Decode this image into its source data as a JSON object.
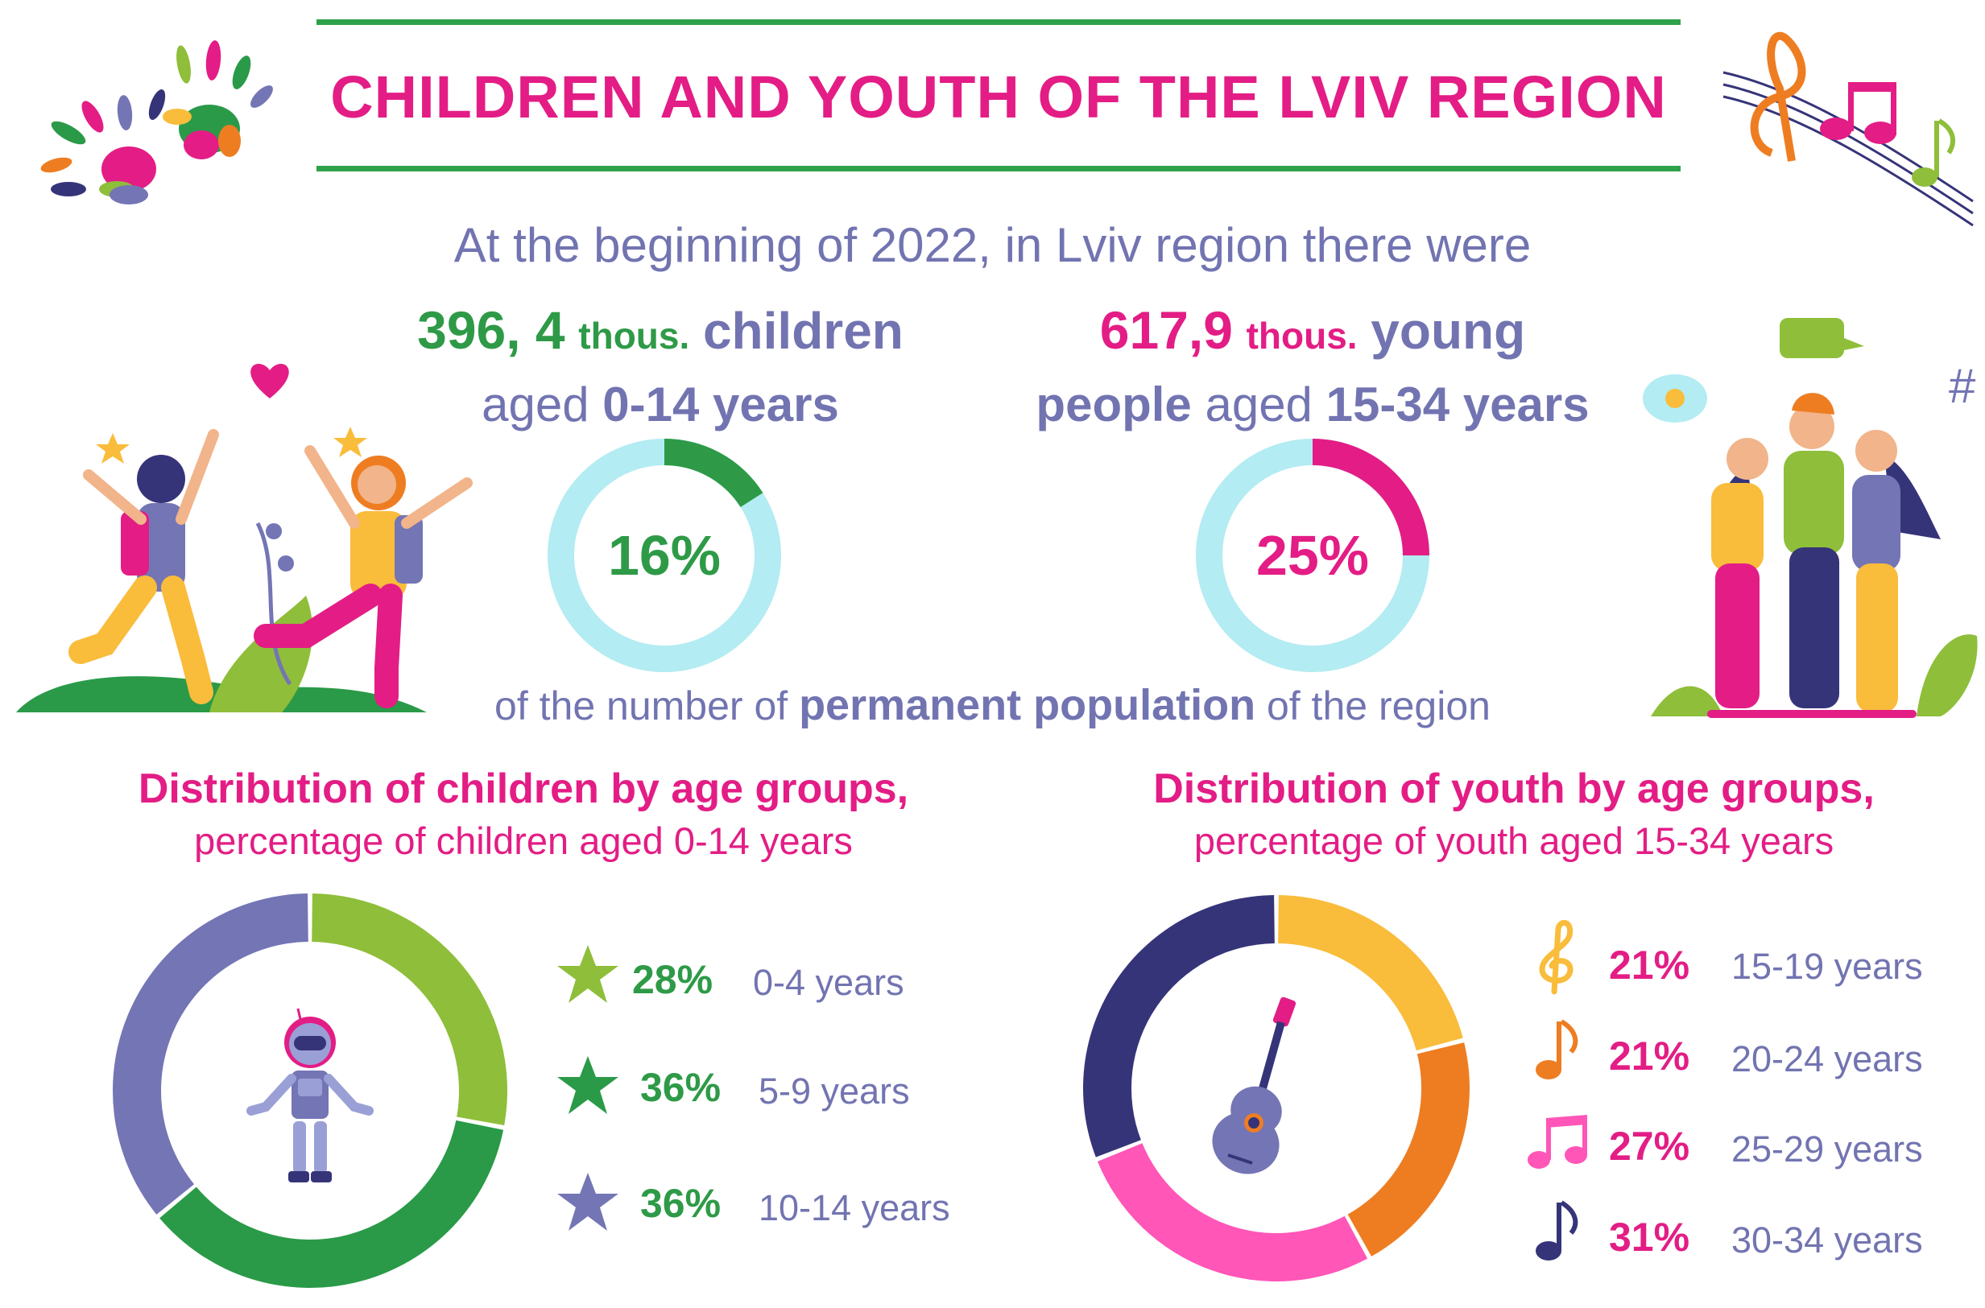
{
  "header": {
    "title": "CHILDREN AND YOUTH OF THE LVIV REGION"
  },
  "intro": {
    "text": "At the beginning of 2022, in Lviv region there were"
  },
  "children_stat": {
    "value": "396, 4",
    "unit": "thous.",
    "noun": "children",
    "aged_prefix": "aged",
    "age_range": "0-14 years",
    "share_label": "16%",
    "share": 16
  },
  "youth_stat": {
    "value": "617,9",
    "unit": "thous.",
    "noun_line1": "young",
    "noun_line2": "people",
    "aged_prefix": "aged",
    "age_range": "15-34 years",
    "share_label": "25%",
    "share": 25
  },
  "population_note": {
    "prefix": "of the number of",
    "bold": "permanent population",
    "suffix": "of the region"
  },
  "children_section": {
    "title": "Distribution of children by age groups,",
    "subtitle": "percentage of children aged 0-14 years"
  },
  "youth_section": {
    "title": "Distribution of youth by age groups,",
    "subtitle": "percentage of  youth aged 15-34 years"
  },
  "colors": {
    "pink": "#e31d85",
    "green": "#2e9a47",
    "purple": "#7274b1",
    "light_blue": "#b3ecf2",
    "lime": "#8fbe3a",
    "dark_green": "#2a9a48",
    "lavender": "#7475b5",
    "yellow": "#f9bc3b",
    "orange": "#ee7d22",
    "magenta": "#ff56b8",
    "navy": "#363479"
  },
  "icons": {
    "children_legend": [
      "star-icon",
      "star-icon",
      "star-icon"
    ],
    "youth_legend": [
      "treble-clef-icon",
      "eighth-note-icon",
      "beamed-notes-icon",
      "eighth-note-icon"
    ],
    "children_center": "robot-icon",
    "youth_center": "guitar-icon"
  },
  "chart_data": [
    {
      "type": "pie",
      "categories": [
        "0-4 years",
        "5-9 years",
        "10-14 years"
      ],
      "values": [
        28,
        36,
        36
      ],
      "labels": [
        "28%",
        "36%",
        "36%"
      ],
      "colors": [
        "#8fbe3a",
        "#2a9a48",
        "#7475b5"
      ],
      "title": "Distribution of children by age groups,",
      "subtitle": "percentage of children aged 0-14 years",
      "legend": "right"
    },
    {
      "type": "pie",
      "categories": [
        "15-19 years",
        "20-24 years",
        "25-29 years",
        "30-34 years"
      ],
      "values": [
        21,
        21,
        27,
        31
      ],
      "labels": [
        "21%",
        "21%",
        "27%",
        "31%"
      ],
      "colors": [
        "#f9bc3b",
        "#ee7d22",
        "#ff56b8",
        "#363479"
      ],
      "title": "Distribution of youth by age groups,",
      "subtitle": "percentage of  youth aged 15-34 years",
      "legend": "right"
    }
  ]
}
